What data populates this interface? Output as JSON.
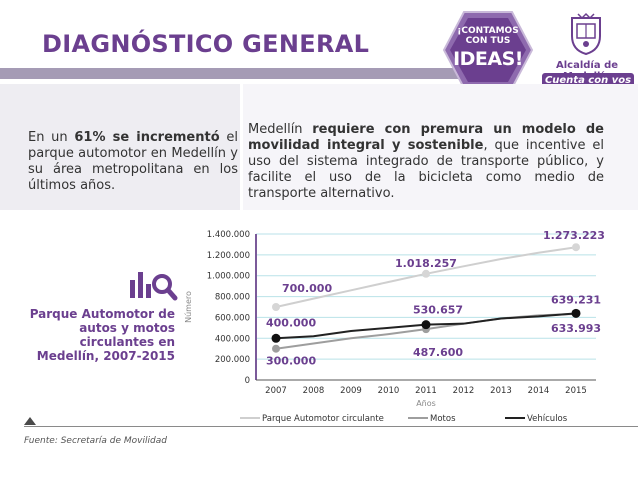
{
  "header": {
    "title": "DIAGNÓSTICO GENERAL",
    "badge_line1": "¡CONTAMOS",
    "badge_line2": "CON TUS",
    "badge_line3": "IDEAS!",
    "logo_line1": "Alcaldía de Medellín",
    "logo_line2": "Cuenta con vos"
  },
  "colors": {
    "purple": "#6b3f8f",
    "accent_bar": "#a59bb5",
    "series_parque": "#cfcfcf",
    "series_motos": "#9e9e9e",
    "series_vehiculos": "#222222",
    "grid": "#b9e2e8",
    "axis": "#7b5a9a"
  },
  "left_box": {
    "pre": "En un ",
    "bold": "61% se incrementó",
    "post": " el parque automotor en Medellín y su área metropolitana en los últimos años."
  },
  "right_box": {
    "pre": "Medellín ",
    "bold": "requiere con premura un modelo de movilidad integral y sostenible",
    "post": ", que incentive el uso del sistema integrado de transporte público, y facilite el uso de la bicicleta como medio de transporte alternativo."
  },
  "side_label": {
    "line1": "Parque Automotor de",
    "line2": "autos y motos",
    "line3": "circulantes en",
    "line4": "Medellín, 2007-2015"
  },
  "icons": {
    "chart_icon": "bar-chart-magnifier-icon"
  },
  "chart_data": {
    "type": "line",
    "x": [
      2007,
      2008,
      2009,
      2010,
      2011,
      2012,
      2013,
      2014,
      2015
    ],
    "xlabel": "Años",
    "ylabel": "Número",
    "ylim": [
      0,
      1400000
    ],
    "yticks": [
      0,
      200000,
      400000,
      600000,
      800000,
      1000000,
      1200000,
      1400000
    ],
    "ytick_labels": [
      "0",
      "200.000",
      "400.000",
      "600.000",
      "800.000",
      "1.000.000",
      "1.200.000",
      "1.400.000"
    ],
    "xtick_labels": [
      "2007",
      "2008",
      "2009",
      "2010",
      "2011",
      "2012",
      "2013",
      "2014",
      "2015"
    ],
    "series": [
      {
        "name": "Parque Automotor circulante",
        "values": [
          700000,
          780000,
          860000,
          940000,
          1018257,
          1090000,
          1160000,
          1220000,
          1273223
        ]
      },
      {
        "name": "Motos",
        "values": [
          300000,
          350000,
          400000,
          440000,
          487600,
          540000,
          590000,
          620000,
          633993
        ]
      },
      {
        "name": "Vehículos",
        "values": [
          400000,
          420000,
          470000,
          500000,
          530657,
          540000,
          590000,
          610000,
          639231
        ]
      }
    ],
    "data_labels": [
      {
        "text": "1.273.223",
        "series": 0,
        "index": 8
      },
      {
        "text": "1.018.257",
        "series": 0,
        "index": 4
      },
      {
        "text": "700.000",
        "series": 0,
        "index": 0
      },
      {
        "text": "639.231",
        "series": 2,
        "index": 8
      },
      {
        "text": "633.993",
        "series": 1,
        "index": 8
      },
      {
        "text": "530.657",
        "series": 2,
        "index": 4
      },
      {
        "text": "487.600",
        "series": 1,
        "index": 4
      },
      {
        "text": "400.000",
        "series": 2,
        "index": 0
      },
      {
        "text": "300.000",
        "series": 1,
        "index": 0
      }
    ],
    "legend": {
      "position": "bottom"
    },
    "grid": true
  },
  "footer": {
    "source": "Fuente: Secretaría de Movilidad"
  }
}
